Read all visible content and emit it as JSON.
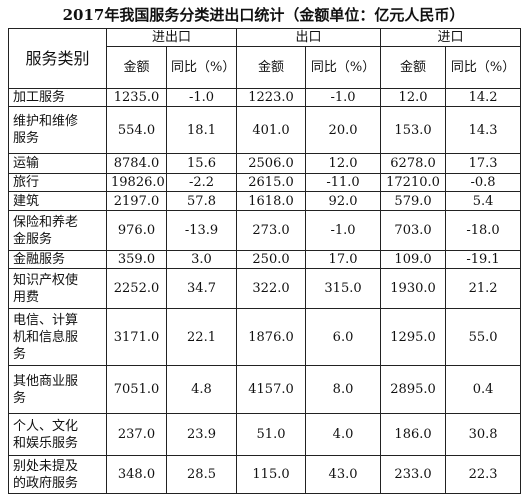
{
  "title": "2017年我国服务分类进出口统计（金额单位：亿元人民币）",
  "table": {
    "header": {
      "group_label": "服务类别",
      "groups": [
        "进出口",
        "出口",
        "进口"
      ],
      "subheaders": [
        "金额",
        "同比（%）",
        "金额",
        "同比（%）",
        "金额",
        "同比（%）"
      ]
    },
    "rows": [
      [
        "加工服务",
        "1235.0",
        "-1.0",
        "1223.0",
        "-1.0",
        "12.0",
        "14.2"
      ],
      [
        "维护和维修服务",
        "554.0",
        "18.1",
        "401.0",
        "20.0",
        "153.0",
        "14.3"
      ],
      [
        "运输",
        "8784.0",
        "15.6",
        "2506.0",
        "12.0",
        "6278.0",
        "17.3"
      ],
      [
        "旅行",
        "19826.0",
        "-2.2",
        "2615.0",
        "-11.0",
        "17210.0",
        "-0.8"
      ],
      [
        "建筑",
        "2197.0",
        "57.8",
        "1618.0",
        "92.0",
        "579.0",
        "5.4"
      ],
      [
        "保险和养老金服务",
        "976.0",
        "-13.9",
        "273.0",
        "-1.0",
        "703.0",
        "-18.0"
      ],
      [
        "金融服务",
        "359.0",
        "3.0",
        "250.0",
        "17.0",
        "109.0",
        "-19.1"
      ],
      [
        "知识产权使用费",
        "2252.0",
        "34.7",
        "322.0",
        "315.0",
        "1930.0",
        "21.2"
      ],
      [
        "电信、计算机和信息服务",
        "3171.0",
        "22.1",
        "1876.0",
        "6.0",
        "1295.0",
        "55.0"
      ],
      [
        "其他商业服务",
        "7051.0",
        "4.8",
        "4157.0",
        "8.0",
        "2895.0",
        "0.4"
      ],
      [
        "个人、文化和娱乐服务",
        "237.0",
        "23.9",
        "51.0",
        "4.0",
        "186.0",
        "30.8"
      ],
      [
        "别处未提及的政府服务",
        "348.0",
        "28.5",
        "115.0",
        "43.0",
        "233.0",
        "22.3"
      ]
    ]
  }
}
